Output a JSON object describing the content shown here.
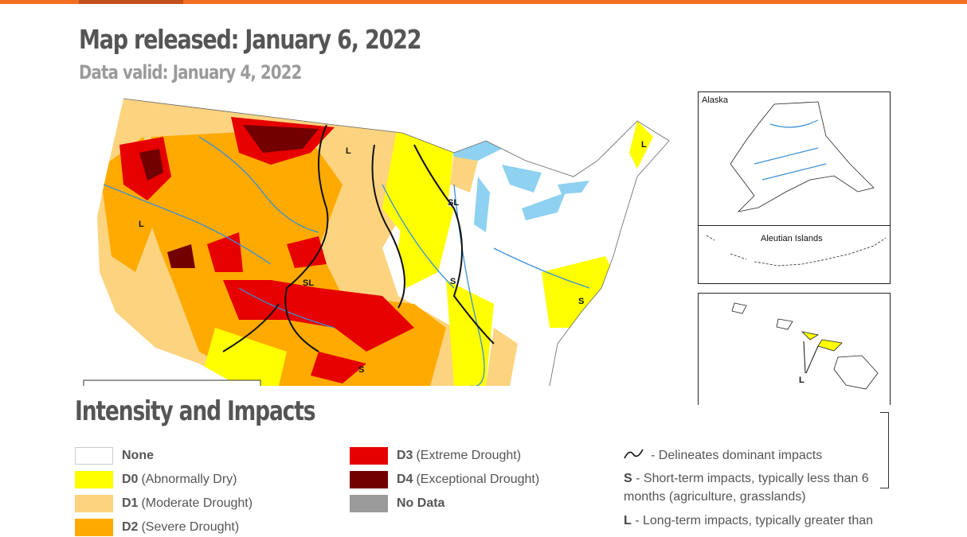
{
  "header": {
    "map_released": "Map released: January 6, 2022",
    "data_valid": "Data valid: January 4, 2022"
  },
  "map": {
    "impact_labels": [
      "L",
      "L",
      "SL",
      "L",
      "S",
      "SL",
      "S",
      "S",
      "L"
    ],
    "insets": {
      "alaska": "Alaska",
      "aleutian": "Aleutian Islands",
      "hawaii_impact": "L"
    }
  },
  "legend": {
    "title": "Intensity and Impacts",
    "items": [
      {
        "code": "None",
        "desc": "",
        "color": "#ffffff"
      },
      {
        "code": "D0",
        "desc": "(Abnormally Dry)",
        "color": "#ffff00"
      },
      {
        "code": "D1",
        "desc": "(Moderate Drought)",
        "color": "#fcd37f"
      },
      {
        "code": "D2",
        "desc": "(Severe Drought)",
        "color": "#ffaa00"
      },
      {
        "code": "D3",
        "desc": "(Extreme Drought)",
        "color": "#e60000"
      },
      {
        "code": "D4",
        "desc": "(Exceptional Drought)",
        "color": "#730000"
      },
      {
        "code": "No Data",
        "desc": "",
        "color": "#9b9b9b"
      }
    ],
    "notes": {
      "line": "- Delineates dominant impacts",
      "s_code": "S",
      "s_text": " - Short-term impacts, typically less than 6 months (agriculture, grasslands)",
      "l_code": "L",
      "l_text": " - Long-term impacts, typically greater than"
    }
  }
}
